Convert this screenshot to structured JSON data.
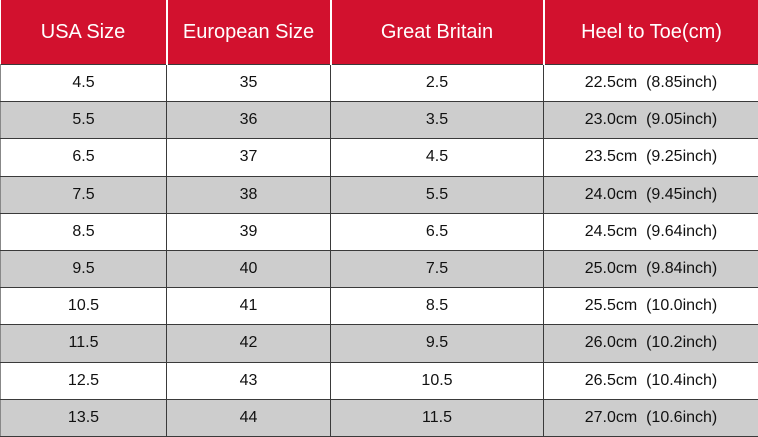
{
  "table": {
    "headers": [
      "USA Size",
      "European Size",
      "Great Britain",
      "Heel to Toe(cm)"
    ],
    "rows": [
      [
        "4.5",
        "35",
        "2.5",
        "22.5cm  (8.85inch)"
      ],
      [
        "5.5",
        "36",
        "3.5",
        "23.0cm  (9.05inch)"
      ],
      [
        "6.5",
        "37",
        "4.5",
        "23.5cm  (9.25inch)"
      ],
      [
        "7.5",
        "38",
        "5.5",
        "24.0cm  (9.45inch)"
      ],
      [
        "8.5",
        "39",
        "6.5",
        "24.5cm  (9.64inch)"
      ],
      [
        "9.5",
        "40",
        "7.5",
        "25.0cm  (9.84inch)"
      ],
      [
        "10.5",
        "41",
        "8.5",
        "25.5cm  (10.0inch)"
      ],
      [
        "11.5",
        "42",
        "9.5",
        "26.0cm  (10.2inch)"
      ],
      [
        "12.5",
        "43",
        "10.5",
        "26.5cm  (10.4inch)"
      ],
      [
        "13.5",
        "44",
        "11.5",
        "27.0cm  (10.6inch)"
      ]
    ]
  },
  "colors": {
    "header_background": "#d2112e",
    "header_text": "#ffffff",
    "row_alt_background": "#cdcdcd"
  }
}
